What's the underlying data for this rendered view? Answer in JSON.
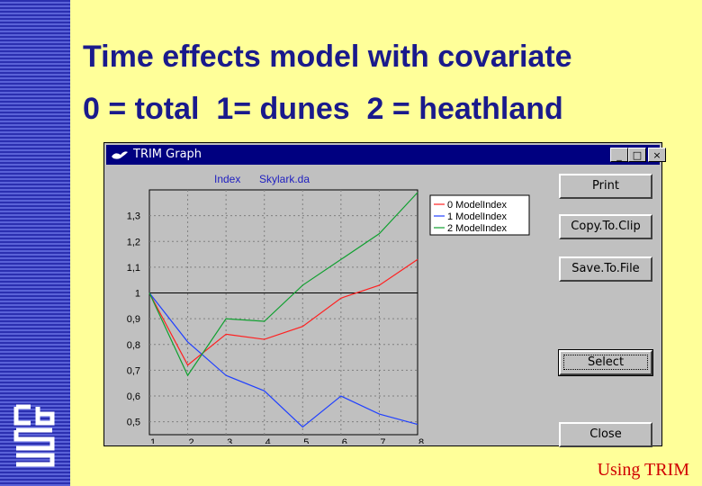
{
  "slide": {
    "title_line1": "Time effects model with covariate",
    "title_line2": "0 = total  1= dunes  2 = heathland",
    "footer": "Using TRIM"
  },
  "window": {
    "title": "TRIM Graph",
    "minimize": "_",
    "maximize": "□",
    "close": "×"
  },
  "buttons": {
    "print": "Print",
    "copy": "Copy.To.Clip",
    "save": "Save.To.File",
    "select": "Select",
    "close": "Close"
  },
  "chart_data": {
    "type": "line",
    "header_left": "Index",
    "header_right": "Skylark.da",
    "x": [
      1,
      2,
      3,
      4,
      5,
      6,
      7,
      8
    ],
    "x_ticks": [
      "1",
      "2",
      "3",
      "4",
      "5",
      "6",
      "7",
      "8"
    ],
    "y_ticks": [
      "0,5",
      "0,6",
      "0,7",
      "0,8",
      "0,9",
      "1",
      "1,1",
      "1,2",
      "1,3"
    ],
    "ylim": [
      0.45,
      1.4
    ],
    "grid": true,
    "legend_position": "top-right",
    "series": [
      {
        "name": "0 ModelIndex",
        "color": "#ff2020",
        "values": [
          1.0,
          0.72,
          0.84,
          0.82,
          0.87,
          0.98,
          1.03,
          1.13
        ]
      },
      {
        "name": "1 ModelIndex",
        "color": "#2040ff",
        "values": [
          1.0,
          0.81,
          0.68,
          0.62,
          0.48,
          0.6,
          0.53,
          0.49
        ]
      },
      {
        "name": "2 ModelIndex",
        "color": "#10a030",
        "values": [
          1.0,
          0.68,
          0.9,
          0.89,
          1.03,
          1.13,
          1.23,
          1.39
        ]
      }
    ]
  }
}
